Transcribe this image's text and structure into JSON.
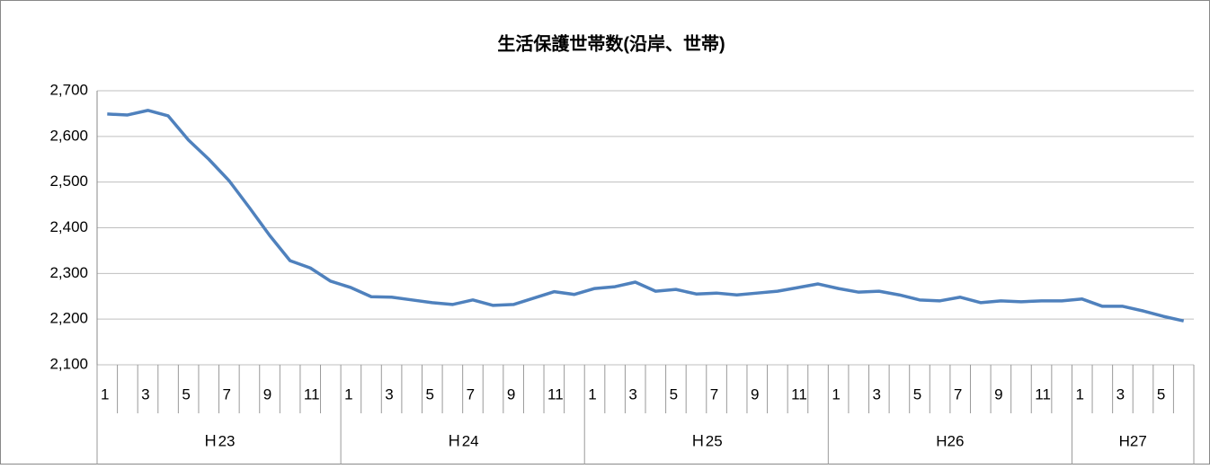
{
  "chart_data": {
    "type": "line",
    "title": "生活保護世帯数(沿岸、世帯)",
    "categories": [
      "1",
      null,
      "3",
      null,
      "5",
      null,
      "7",
      null,
      "9",
      null,
      "11",
      null,
      "1",
      null,
      "3",
      null,
      "5",
      null,
      "7",
      null,
      "9",
      null,
      "11",
      null,
      "1",
      null,
      "3",
      null,
      "5",
      null,
      "7",
      null,
      "9",
      null,
      "11",
      null,
      "1",
      null,
      "3",
      null,
      "5",
      null,
      "7",
      null,
      "9",
      null,
      "11",
      null,
      "1",
      null,
      "3",
      null,
      "5",
      null
    ],
    "category_groups": [
      "Ｈ23",
      null,
      null,
      null,
      null,
      null,
      null,
      null,
      null,
      null,
      null,
      null,
      "Ｈ24",
      null,
      null,
      null,
      null,
      null,
      null,
      null,
      null,
      null,
      null,
      null,
      "Ｈ25",
      null,
      null,
      null,
      null,
      null,
      null,
      null,
      null,
      null,
      null,
      null,
      "H26",
      null,
      null,
      null,
      null,
      null,
      null,
      null,
      null,
      null,
      null,
      null,
      "H27",
      null,
      null,
      null,
      null,
      null
    ],
    "series": [
      {
        "name": "生活保護世帯数",
        "color": "#4f81bd",
        "values": [
          2649,
          2647,
          2657,
          2645,
          2592,
          2550,
          2503,
          2444,
          2383,
          2328,
          2312,
          2283,
          2269,
          2249,
          2248,
          2242,
          2236,
          2232,
          2242,
          2230,
          2232,
          2246,
          2260,
          2254,
          2267,
          2271,
          2281,
          2261,
          2265,
          2255,
          2257,
          2253,
          2257,
          2261,
          2269,
          2277,
          2267,
          2259,
          2261,
          2253,
          2242,
          2240,
          2248,
          2236,
          2240,
          2238,
          2240,
          2240,
          2244,
          2228,
          2228,
          2218,
          2206,
          2196
        ]
      }
    ],
    "ylim": [
      2100,
      2700
    ],
    "yticks": [
      {
        "value": 2100,
        "label": "2,100"
      },
      {
        "value": 2200,
        "label": "2,200"
      },
      {
        "value": 2300,
        "label": "2,300"
      },
      {
        "value": 2400,
        "label": "2,400"
      },
      {
        "value": 2500,
        "label": "2,500"
      },
      {
        "value": 2600,
        "label": "2,600"
      },
      {
        "value": 2700,
        "label": "2,700"
      }
    ],
    "grid": true
  }
}
